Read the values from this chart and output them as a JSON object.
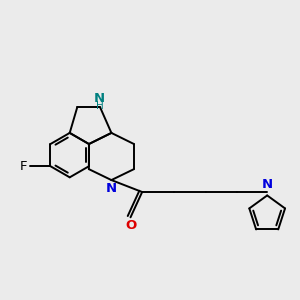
{
  "background_color": "#ebebeb",
  "bond_color": "#000000",
  "N_color": "#0000dd",
  "NH_color": "#008080",
  "O_color": "#dd0000",
  "F_color": "#000000",
  "figsize": [
    3.0,
    3.0
  ],
  "dpi": 100,
  "lw": 1.4,
  "lw_inner": 1.3,
  "xlim": [
    -4.5,
    4.2
  ],
  "ylim": [
    -2.5,
    3.2
  ]
}
